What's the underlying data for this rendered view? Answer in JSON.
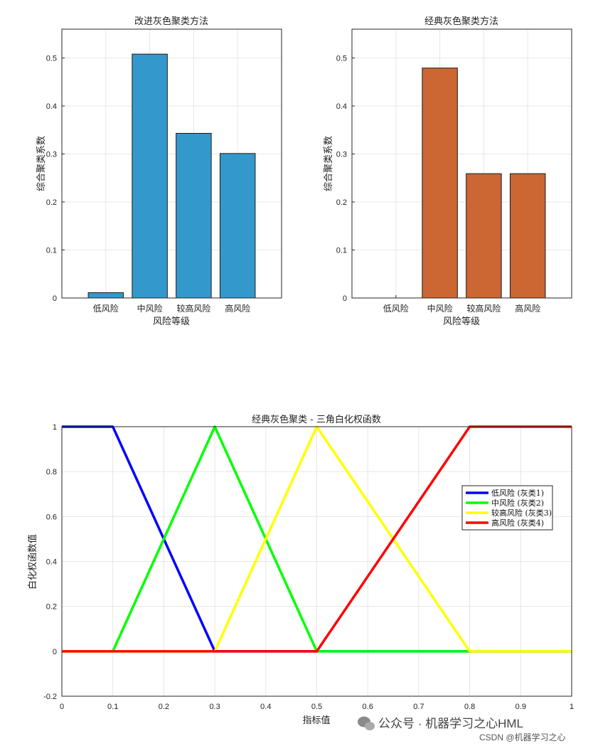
{
  "chart_data": [
    {
      "type": "bar",
      "title": "改进灰色聚类方法",
      "xlabel": "风险等级",
      "ylabel": "综合聚类系数",
      "categories": [
        "低风险",
        "中风险",
        "较高风险",
        "高风险"
      ],
      "values": [
        0.011,
        0.508,
        0.343,
        0.301
      ],
      "ylim": [
        0,
        0.56
      ],
      "yticks": [
        "0",
        "0.1",
        "0.2",
        "0.3",
        "0.4",
        "0.5"
      ],
      "grid": true,
      "color": "#3399cc"
    },
    {
      "type": "bar",
      "title": "经典灰色聚类方法",
      "xlabel": "风险等级",
      "ylabel": "综合聚类系数",
      "categories": [
        "低风险",
        "中风险",
        "较高风险",
        "高风险"
      ],
      "values": [
        0.0,
        0.479,
        0.259,
        0.259
      ],
      "ylim": [
        0,
        0.56
      ],
      "yticks": [
        "0",
        "0.1",
        "0.2",
        "0.3",
        "0.4",
        "0.5"
      ],
      "grid": true,
      "color": "#cc6633"
    },
    {
      "type": "line",
      "title": "经典灰色聚类 - 三角白化权函数",
      "xlabel": "指标值",
      "ylabel": "白化权函数值",
      "xlim": [
        0,
        1
      ],
      "ylim": [
        -0.2,
        1
      ],
      "xticks": [
        "0",
        "0.1",
        "0.2",
        "0.3",
        "0.4",
        "0.5",
        "0.6",
        "0.7",
        "0.8",
        "0.9",
        "1"
      ],
      "yticks": [
        "-0.2",
        "0",
        "0.2",
        "0.4",
        "0.6",
        "0.8",
        "1"
      ],
      "grid": true,
      "legend": "right",
      "series": [
        {
          "name": "低风险 (灰类1)",
          "color": "#0000ff",
          "x": [
            0,
            0.1,
            0.3,
            1
          ],
          "y": [
            1,
            1,
            0,
            0
          ]
        },
        {
          "name": "中风险 (灰类2)",
          "color": "#00ff00",
          "x": [
            0,
            0.1,
            0.3,
            0.5,
            1
          ],
          "y": [
            0,
            0,
            1,
            0,
            0
          ]
        },
        {
          "name": "较高风险 (灰类3)",
          "color": "#ffff00",
          "x": [
            0,
            0.3,
            0.5,
            0.8,
            1
          ],
          "y": [
            0,
            0,
            1,
            0,
            0
          ]
        },
        {
          "name": "高风险 (灰类4)",
          "color": "#ff0000",
          "x": [
            0,
            0.5,
            0.8,
            1
          ],
          "y": [
            0,
            0,
            1,
            1
          ]
        }
      ]
    }
  ],
  "watermark": {
    "main": "公众号 · 机器学习之心HML",
    "csdn": "CSDN @机器学习之心"
  }
}
